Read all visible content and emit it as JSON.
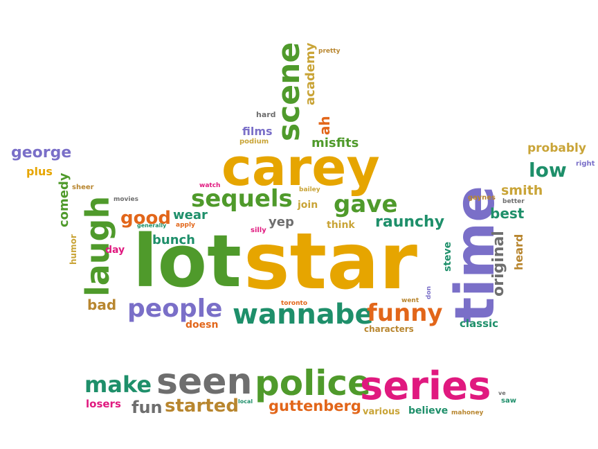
{
  "words": {
    "lot": "lot",
    "star": "star",
    "time": "time",
    "carey": "carey",
    "seen": "seen",
    "police": "police",
    "series": "series",
    "laugh": "laugh",
    "scene": "scene",
    "wannabe": "wannabe",
    "people": "people",
    "sequels": "sequels",
    "gave": "gave",
    "funny": "funny",
    "make": "make",
    "started": "started",
    "fun": "fun",
    "guttenberg": "guttenberg",
    "low": "low",
    "raunchy": "raunchy",
    "good": "good",
    "george": "george",
    "academy": "academy",
    "ah": "ah",
    "misfits": "misfits",
    "films": "films",
    "podium": "podium",
    "hard": "hard",
    "pretty": "pretty",
    "probably": "probably",
    "right": "right",
    "smith": "smith",
    "gaynes": "gaynes",
    "better": "better",
    "best": "best",
    "original": "original",
    "heard": "heard",
    "steve": "steve",
    "classic": "classic",
    "characters": "characters",
    "went": "went",
    "don": "don",
    "toronto": "toronto",
    "doesn": "doesn",
    "bad": "bad",
    "day": "day",
    "bunch": "bunch",
    "wear": "wear",
    "apply": "apply",
    "generally": "generally",
    "movies": "movies",
    "sheer": "sheer",
    "comedy": "comedy",
    "plus": "plus",
    "humor": "humor",
    "watch": "watch",
    "bailey": "bailey",
    "join": "join",
    "yep": "yep",
    "think": "think",
    "silly": "silly",
    "losers": "losers",
    "local": "local",
    "various": "various",
    "believe": "believe",
    "mahoney": "mahoney",
    "ve": "ve",
    "saw": "saw"
  },
  "colors": {
    "green": "#4f9a2b",
    "orange": "#e6a500",
    "teal": "#1e8f6a",
    "purple": "#7a6fc8",
    "gray": "#6e6e6e",
    "dark_orange": "#e2661a",
    "magenta": "#e0197f",
    "mustard": "#c9a437",
    "brown": "#b8862f"
  }
}
